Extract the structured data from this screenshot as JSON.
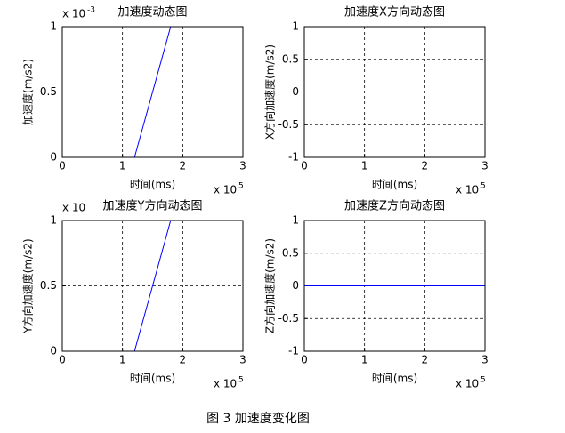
{
  "chart_data": [
    {
      "type": "line",
      "title": "加速度动态图",
      "xlabel": "时间(ms)",
      "ylabel": "加速度(m/s2)",
      "x_multiplier": {
        "base": "x 10",
        "exponent": "5"
      },
      "y_multiplier": {
        "base": "x 10",
        "exponent": "-3"
      },
      "x": [
        0,
        1.2,
        1.8,
        3
      ],
      "values": [
        0,
        0,
        1,
        1
      ],
      "color": "#0000ff",
      "xlim": [
        0,
        3
      ],
      "xticks": [
        0,
        1,
        2,
        3
      ],
      "ylim": [
        0,
        1
      ],
      "yticks": [
        0,
        0.5,
        1
      ],
      "grid": true
    },
    {
      "type": "line",
      "title": "加速度X方向动态图",
      "xlabel": "时间(ms)",
      "ylabel": "X方向加速度(m/s2)",
      "x_multiplier": {
        "base": "x 10",
        "exponent": "5"
      },
      "x": [
        0,
        3
      ],
      "values": [
        0,
        0
      ],
      "color": "#0000ff",
      "xlim": [
        0,
        3
      ],
      "xticks": [
        0,
        1,
        2,
        3
      ],
      "ylim": [
        -1,
        1
      ],
      "yticks": [
        -1,
        -0.5,
        0,
        0.5,
        1
      ],
      "grid": true
    },
    {
      "type": "line",
      "title": "加速度Y方向动态图",
      "xlabel": "时间(ms)",
      "ylabel": "Y方向加速度(m/s2)",
      "x_multiplier": {
        "base": "x 10",
        "exponent": "5"
      },
      "y_multiplier": {
        "base": "x 10"
      },
      "x": [
        0,
        1.2,
        1.8,
        3
      ],
      "values": [
        0,
        0,
        1,
        1
      ],
      "color": "#0000ff",
      "xlim": [
        0,
        3
      ],
      "xticks": [
        0,
        1,
        2,
        3
      ],
      "ylim": [
        0,
        1
      ],
      "yticks": [
        0,
        0.5,
        1
      ],
      "grid": true
    },
    {
      "type": "line",
      "title": "加速度Z方向动态图",
      "xlabel": "时间(ms)",
      "ylabel": "Z方向加速度(m/s2)",
      "x_multiplier": {
        "base": "x 10",
        "exponent": "5"
      },
      "x": [
        0,
        3
      ],
      "values": [
        0,
        0
      ],
      "color": "#0000ff",
      "xlim": [
        0,
        3
      ],
      "xticks": [
        0,
        1,
        2,
        3
      ],
      "ylim": [
        -1,
        1
      ],
      "yticks": [
        -1,
        -0.5,
        0,
        0.5,
        1
      ],
      "grid": true
    }
  ],
  "caption": "图 3  加速度变化图"
}
